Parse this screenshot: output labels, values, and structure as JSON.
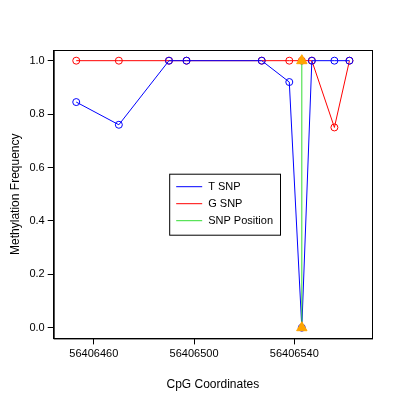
{
  "chart_data": {
    "type": "line",
    "x_label": "CpG Coordinates",
    "y_label": "Methylation Frequency",
    "x": [
      56406453,
      56406470,
      56406490,
      56406497,
      56406527,
      56406538,
      56406543,
      56406547,
      56406556,
      56406562
    ],
    "series": [
      {
        "name": "T SNP",
        "color": "#0000ff",
        "marker": "circle",
        "line_style": "solid",
        "values": [
          0.845,
          0.76,
          1.0,
          1.0,
          1.0,
          0.92,
          0.0,
          1.0,
          1.0,
          1.0
        ]
      },
      {
        "name": "G SNP",
        "color": "#ff0000",
        "marker": "circle",
        "line_style": "solid",
        "values": [
          1.0,
          1.0,
          1.0,
          1.0,
          1.0,
          1.0,
          1.0,
          1.0,
          0.75,
          1.0
        ]
      },
      {
        "name": "SNP Position",
        "color": "#33dd33",
        "marker": "triangle",
        "line_style": "solid",
        "colors": [
          "#ffa500",
          "#ffa500"
        ],
        "x": [
          56406543,
          56406543
        ],
        "values": [
          0.0,
          1.0
        ]
      }
    ],
    "xlim": [
      56406444,
      56406571
    ],
    "xticks": [
      56406460,
      56406500,
      56406540
    ],
    "ylim": [
      -0.04,
      1.04
    ],
    "yticks": [
      {
        "value": 0,
        "label": "0.0"
      },
      {
        "value": 0.2,
        "label": "0.2"
      },
      {
        "value": 0.4,
        "label": "0.4"
      },
      {
        "value": 0.6,
        "label": "0.6"
      },
      {
        "value": 0.8,
        "label": "0.8"
      },
      {
        "value": 1.0,
        "label": "1.0"
      }
    ],
    "grid": false,
    "legend": "right"
  }
}
